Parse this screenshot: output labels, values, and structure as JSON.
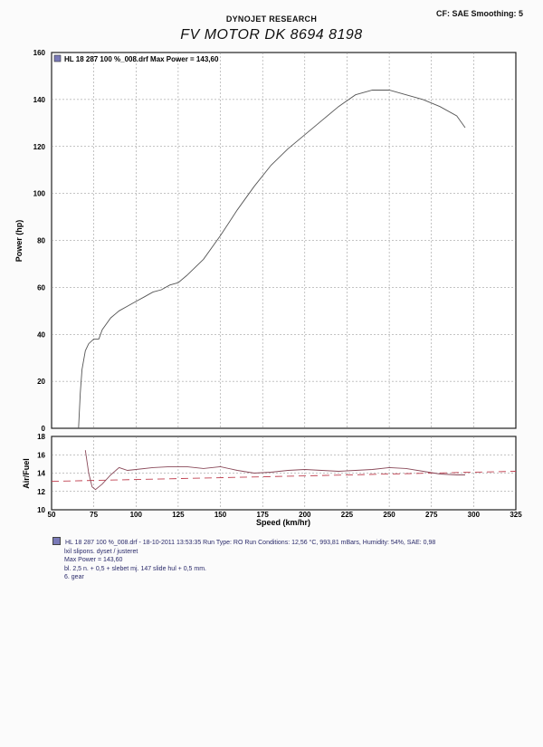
{
  "header": {
    "company": "DYNOJET RESEARCH",
    "title": "FV MOTOR DK 8694 8198",
    "cf": "CF: SAE  Smoothing: 5"
  },
  "legend": {
    "label": "HL 18 287 100 %_008.drf Max Power = 143,60"
  },
  "colors": {
    "power": "#555555",
    "af": "#8a4a5a",
    "af_target": "#c04050",
    "grid": "#888888"
  },
  "chart_data": [
    {
      "type": "line",
      "ylabel": "Power (hp)",
      "xlim": [
        50,
        325
      ],
      "ylim": [
        0,
        160
      ],
      "x_ticks": [
        50,
        75,
        100,
        125,
        150,
        175,
        200,
        225,
        250,
        275,
        300,
        325
      ],
      "y_ticks": [
        0,
        20,
        40,
        60,
        80,
        100,
        120,
        140,
        160
      ],
      "grid": true,
      "series": [
        {
          "x": [
            66,
            67,
            68,
            70,
            72,
            75,
            78,
            80,
            85,
            90,
            95,
            100,
            105,
            110,
            115,
            120,
            125,
            130,
            140,
            150,
            160,
            170,
            180,
            190,
            200,
            210,
            220,
            230,
            240,
            250,
            260,
            270,
            280,
            290,
            295
          ],
          "y": [
            0,
            15,
            25,
            33,
            36,
            38,
            38,
            42,
            47,
            50,
            52,
            54,
            56,
            58,
            59,
            61,
            62,
            65,
            72,
            82,
            93,
            103,
            112,
            119,
            125,
            131,
            137,
            142,
            144,
            144,
            142,
            140,
            137,
            133,
            128
          ]
        }
      ]
    },
    {
      "type": "line",
      "ylabel": "Air/Fuel",
      "xlabel": "Speed (km/hr)",
      "xlim": [
        50,
        325
      ],
      "ylim": [
        10,
        18
      ],
      "x_ticks": [
        50,
        75,
        100,
        125,
        150,
        175,
        200,
        225,
        250,
        275,
        300,
        325
      ],
      "y_ticks": [
        10,
        12,
        14,
        16,
        18
      ],
      "grid": true,
      "series": [
        {
          "x": [
            70,
            72,
            74,
            76,
            80,
            85,
            90,
            95,
            100,
            110,
            120,
            130,
            140,
            150,
            160,
            170,
            180,
            190,
            200,
            210,
            220,
            230,
            240,
            250,
            260,
            270,
            280,
            290,
            295
          ],
          "y": [
            16.5,
            14,
            12.5,
            12.2,
            12.8,
            13.8,
            14.6,
            14.3,
            14.4,
            14.6,
            14.7,
            14.7,
            14.5,
            14.7,
            14.3,
            14,
            14.1,
            14.3,
            14.4,
            14.3,
            14.2,
            14.3,
            14.4,
            14.6,
            14.5,
            14.2,
            13.9,
            13.8,
            13.8
          ]
        },
        {
          "x": [
            50,
            325
          ],
          "y": [
            13.1,
            14.2
          ]
        }
      ]
    }
  ],
  "footer": {
    "run_line": "HL 18 287 100 %_008.drf - 18-10-2011 13:53:35  Run Type: RO  Run Conditions: 12,56 °C, 993,81 mBars,  Humidity:  54%, SAE: 0,98",
    "notes": [
      "lxil slipons. dyset / justeret",
      "Max Power = 143,60",
      "bl. 2,5  n. + 0,5 + slebet  mj. 147 slide hul + 0,5 mm.",
      "6. gear"
    ]
  }
}
